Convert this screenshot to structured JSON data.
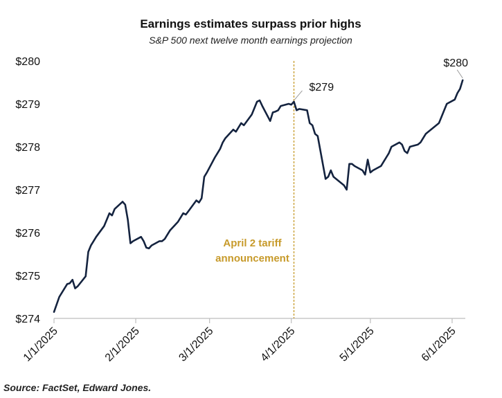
{
  "chart_data": {
    "type": "line",
    "title": "Earnings estimates surpass prior highs",
    "subtitle": "S&P 500 next twelve month earnings projection",
    "xlabel": "",
    "ylabel": "",
    "ylim": [
      274,
      280
    ],
    "xlim": [
      "2025-01-01",
      "2025-06-06"
    ],
    "yticks": [
      {
        "value": 274,
        "label": "$274"
      },
      {
        "value": 275,
        "label": "$275"
      },
      {
        "value": 276,
        "label": "$276"
      },
      {
        "value": 277,
        "label": "$277"
      },
      {
        "value": 278,
        "label": "$278"
      },
      {
        "value": 279,
        "label": "$279"
      },
      {
        "value": 280,
        "label": "$280"
      }
    ],
    "xticks": [
      {
        "date": "2025-01-01",
        "label": "1/1/2025"
      },
      {
        "date": "2025-02-01",
        "label": "2/1/2025"
      },
      {
        "date": "2025-03-01",
        "label": "3/1/2025"
      },
      {
        "date": "2025-04-01",
        "label": "4/1/2025"
      },
      {
        "date": "2025-05-01",
        "label": "5/1/2025"
      },
      {
        "date": "2025-06-01",
        "label": "6/1/2025"
      }
    ],
    "grid": false,
    "line_color": "#14233f",
    "series": [
      {
        "x": [
          "2025-01-01",
          "2025-01-03",
          "2025-01-06",
          "2025-01-07",
          "2025-01-08",
          "2025-01-09",
          "2025-01-10",
          "2025-01-13",
          "2025-01-14",
          "2025-01-15",
          "2025-01-16",
          "2025-01-17",
          "2025-01-20",
          "2025-01-21",
          "2025-01-22",
          "2025-01-23",
          "2025-01-24",
          "2025-01-27",
          "2025-01-28",
          "2025-01-29",
          "2025-01-30",
          "2025-01-31",
          "2025-02-03",
          "2025-02-04",
          "2025-02-05",
          "2025-02-06",
          "2025-02-07",
          "2025-02-10",
          "2025-02-11",
          "2025-02-12",
          "2025-02-13",
          "2025-02-14",
          "2025-02-17",
          "2025-02-18",
          "2025-02-19",
          "2025-02-20",
          "2025-02-21",
          "2025-02-24",
          "2025-02-25",
          "2025-02-26",
          "2025-02-27",
          "2025-02-28",
          "2025-03-03",
          "2025-03-04",
          "2025-03-05",
          "2025-03-06",
          "2025-03-07",
          "2025-03-10",
          "2025-03-11",
          "2025-03-12",
          "2025-03-13",
          "2025-03-14",
          "2025-03-17",
          "2025-03-18",
          "2025-03-19",
          "2025-03-20",
          "2025-03-21",
          "2025-03-24",
          "2025-03-25",
          "2025-03-26",
          "2025-03-27",
          "2025-03-28",
          "2025-03-31",
          "2025-04-01",
          "2025-04-02",
          "2025-04-03",
          "2025-04-04",
          "2025-04-07",
          "2025-04-08",
          "2025-04-09",
          "2025-04-10",
          "2025-04-11",
          "2025-04-14",
          "2025-04-15",
          "2025-04-16",
          "2025-04-17",
          "2025-04-21",
          "2025-04-22",
          "2025-04-23",
          "2025-04-24",
          "2025-04-25",
          "2025-04-28",
          "2025-04-29",
          "2025-04-30",
          "2025-05-01",
          "2025-05-02",
          "2025-05-05",
          "2025-05-06",
          "2025-05-07",
          "2025-05-08",
          "2025-05-09",
          "2025-05-12",
          "2025-05-13",
          "2025-05-14",
          "2025-05-15",
          "2025-05-16",
          "2025-05-19",
          "2025-05-20",
          "2025-05-21",
          "2025-05-22",
          "2025-05-23",
          "2025-05-27",
          "2025-05-28",
          "2025-05-29",
          "2025-05-30",
          "2025-06-02",
          "2025-06-03",
          "2025-06-04",
          "2025-06-05"
        ],
        "values": [
          274.15,
          274.5,
          274.8,
          274.82,
          274.9,
          274.7,
          274.75,
          274.98,
          275.55,
          275.7,
          275.8,
          275.9,
          276.15,
          276.3,
          276.45,
          276.4,
          276.55,
          276.72,
          276.65,
          276.3,
          275.75,
          275.8,
          275.9,
          275.8,
          275.65,
          275.63,
          275.7,
          275.8,
          275.8,
          275.85,
          275.95,
          276.05,
          276.25,
          276.35,
          276.45,
          276.42,
          276.5,
          276.75,
          276.7,
          276.8,
          277.3,
          277.4,
          277.75,
          277.85,
          277.95,
          278.1,
          278.2,
          278.4,
          278.35,
          278.45,
          278.55,
          278.5,
          278.75,
          278.9,
          279.05,
          279.08,
          278.95,
          278.6,
          278.8,
          278.82,
          278.85,
          278.95,
          279.0,
          278.98,
          279.05,
          278.85,
          278.88,
          278.85,
          278.55,
          278.5,
          278.3,
          278.25,
          277.25,
          277.3,
          277.45,
          277.3,
          277.1,
          277.0,
          277.6,
          277.6,
          277.55,
          277.45,
          277.35,
          277.7,
          277.4,
          277.45,
          277.55,
          277.65,
          277.75,
          277.85,
          278.0,
          278.1,
          278.05,
          277.9,
          277.85,
          278.0,
          278.05,
          278.1,
          278.2,
          278.3,
          278.35,
          278.55,
          278.7,
          278.85,
          279.0,
          279.1,
          279.25,
          279.35,
          279.55
        ]
      }
    ],
    "event_line": {
      "date": "2025-04-02",
      "label_lines": [
        "April 2 tariff",
        "announcement"
      ],
      "color": "#c79a2a",
      "style": "dashed"
    },
    "annotations": [
      {
        "date": "2025-04-02",
        "value": 279.05,
        "label": "$279",
        "side": "right"
      },
      {
        "date": "2025-06-05",
        "value": 279.55,
        "label": "$280",
        "side": "above"
      }
    ]
  },
  "source": "Source: FactSet, Edward Jones."
}
